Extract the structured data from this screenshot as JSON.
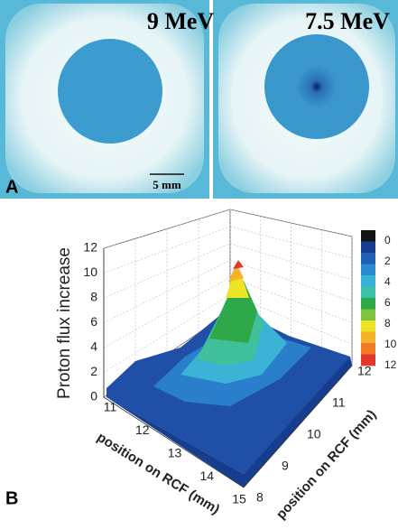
{
  "panel_a": {
    "label": "A",
    "images": [
      {
        "label": "9 MeV"
      },
      {
        "label": "7.5 MeV"
      }
    ],
    "scale_bar": "5 mm"
  },
  "panel_b": {
    "label": "B",
    "z_label": "Proton flux increase",
    "z_ticks": [
      "0",
      "2",
      "4",
      "6",
      "8",
      "10",
      "12"
    ],
    "x_label": "position on RCF (mm)",
    "x_ticks": [
      "11",
      "12",
      "13",
      "14",
      "15"
    ],
    "y_label": "position on RCF (mm)",
    "y_ticks": [
      "8",
      "9",
      "10",
      "11",
      "12"
    ],
    "colorbar": {
      "ticks": [
        "0",
        "2",
        "4",
        "6",
        "8",
        "10",
        "12"
      ],
      "colors": [
        "#141414",
        "#173d8e",
        "#1f5fb5",
        "#2a88d0",
        "#38b1d8",
        "#3dbfa8",
        "#2fa84a",
        "#7cc440",
        "#ece526",
        "#f6b22a",
        "#f07a26",
        "#e2362a"
      ]
    }
  }
}
